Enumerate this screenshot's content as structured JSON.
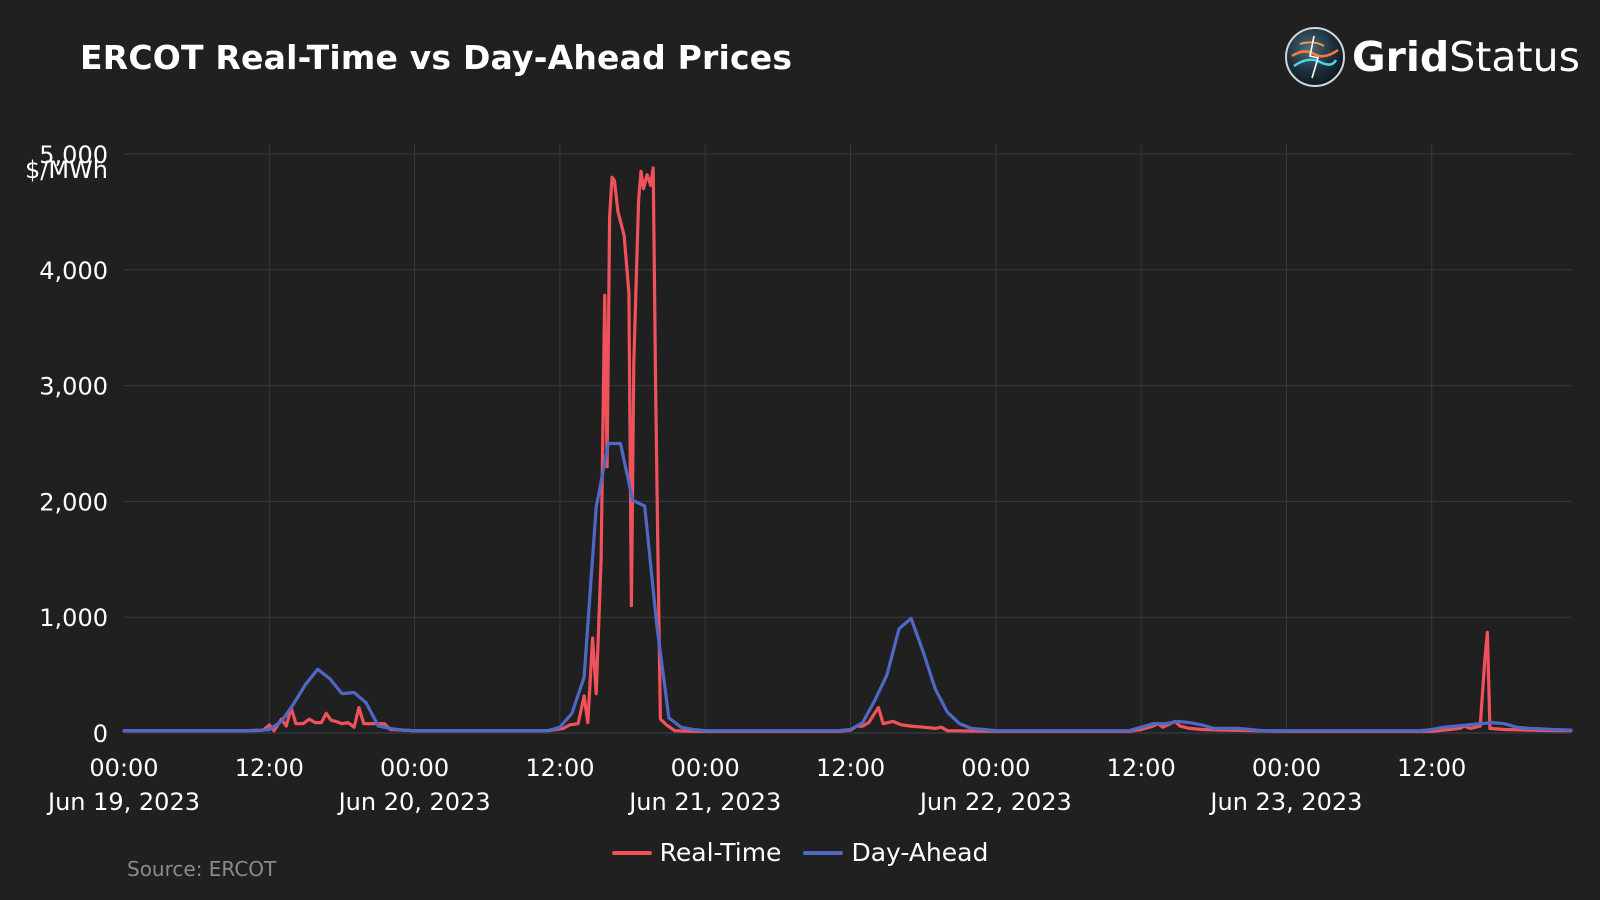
{
  "title": "ERCOT Real-Time vs Day-Ahead Prices",
  "logo": {
    "bold": "Grid",
    "light": "Status",
    "icon": "gridstatus-globe-icon"
  },
  "source": "Source: ERCOT",
  "colors": {
    "background": "#202020",
    "grid": "#2f3a46",
    "realtime": "#f0525c",
    "dayahead": "#4f68c6"
  },
  "chart_data": {
    "type": "line",
    "title": "ERCOT Real-Time vs Day-Ahead Prices",
    "ylabel": "$/MWh",
    "ylim": [
      0,
      5000
    ],
    "yticks": [
      0,
      1000,
      2000,
      3000,
      4000,
      5000
    ],
    "ytick_labels": [
      "0",
      "1,000",
      "2,000",
      "3,000",
      "4,000",
      "5,000"
    ],
    "xlim": [
      0,
      119.5
    ],
    "xticks": [
      {
        "x": 0,
        "l1": "00:00",
        "l2": "Jun 19, 2023"
      },
      {
        "x": 12,
        "l1": "12:00",
        "l2": ""
      },
      {
        "x": 24,
        "l1": "00:00",
        "l2": "Jun 20, 2023"
      },
      {
        "x": 36,
        "l1": "12:00",
        "l2": ""
      },
      {
        "x": 48,
        "l1": "00:00",
        "l2": "Jun 21, 2023"
      },
      {
        "x": 60,
        "l1": "12:00",
        "l2": ""
      },
      {
        "x": 72,
        "l1": "00:00",
        "l2": "Jun 22, 2023"
      },
      {
        "x": 84,
        "l1": "12:00",
        "l2": ""
      },
      {
        "x": 96,
        "l1": "00:00",
        "l2": "Jun 23, 2023"
      },
      {
        "x": 108,
        "l1": "12:00",
        "l2": ""
      }
    ],
    "grid": true,
    "legend_position": "bottom-center",
    "series": [
      {
        "name": "Real-Time",
        "color": "#f0525c",
        "points": [
          [
            0,
            20
          ],
          [
            10,
            20
          ],
          [
            11.5,
            25
          ],
          [
            12,
            70
          ],
          [
            12.4,
            20
          ],
          [
            13,
            120
          ],
          [
            13.4,
            60
          ],
          [
            13.8,
            220
          ],
          [
            14.2,
            80
          ],
          [
            14.8,
            80
          ],
          [
            15.3,
            120
          ],
          [
            15.8,
            90
          ],
          [
            16.3,
            90
          ],
          [
            16.7,
            170
          ],
          [
            17.1,
            110
          ],
          [
            17.5,
            100
          ],
          [
            18,
            80
          ],
          [
            18.5,
            90
          ],
          [
            19,
            50
          ],
          [
            19.4,
            220
          ],
          [
            19.8,
            80
          ],
          [
            20.5,
            80
          ],
          [
            21.5,
            80
          ],
          [
            22,
            30
          ],
          [
            24,
            20
          ],
          [
            35,
            20
          ],
          [
            36.3,
            40
          ],
          [
            36.8,
            70
          ],
          [
            37.5,
            80
          ],
          [
            38,
            320
          ],
          [
            38.3,
            90
          ],
          [
            38.7,
            820
          ],
          [
            39,
            340
          ],
          [
            39.4,
            1500
          ],
          [
            39.7,
            3780
          ],
          [
            39.9,
            2300
          ],
          [
            40.1,
            4450
          ],
          [
            40.3,
            4800
          ],
          [
            40.5,
            4770
          ],
          [
            40.8,
            4500
          ],
          [
            41.3,
            4300
          ],
          [
            41.7,
            3800
          ],
          [
            41.9,
            1100
          ],
          [
            42.1,
            3200
          ],
          [
            42.5,
            4600
          ],
          [
            42.7,
            4850
          ],
          [
            42.9,
            4700
          ],
          [
            43.2,
            4820
          ],
          [
            43.5,
            4730
          ],
          [
            43.7,
            4880
          ],
          [
            43.9,
            3000
          ],
          [
            44.1,
            1500
          ],
          [
            44.3,
            120
          ],
          [
            44.8,
            70
          ],
          [
            45.5,
            20
          ],
          [
            47,
            15
          ],
          [
            59,
            15
          ],
          [
            60,
            25
          ],
          [
            60.5,
            60
          ],
          [
            61,
            60
          ],
          [
            61.5,
            90
          ],
          [
            62.3,
            220
          ],
          [
            62.7,
            80
          ],
          [
            63.5,
            100
          ],
          [
            64.2,
            70
          ],
          [
            65,
            60
          ],
          [
            66,
            50
          ],
          [
            67,
            40
          ],
          [
            67.5,
            50
          ],
          [
            68,
            20
          ],
          [
            72,
            15
          ],
          [
            83,
            15
          ],
          [
            84,
            30
          ],
          [
            85,
            60
          ],
          [
            85.4,
            80
          ],
          [
            85.8,
            50
          ],
          [
            86.4,
            80
          ],
          [
            86.8,
            100
          ],
          [
            87.2,
            60
          ],
          [
            88,
            40
          ],
          [
            89,
            30
          ],
          [
            91,
            25
          ],
          [
            96,
            15
          ],
          [
            108,
            15
          ],
          [
            109,
            25
          ],
          [
            110.3,
            40
          ],
          [
            110.7,
            60
          ],
          [
            111.2,
            40
          ],
          [
            112,
            60
          ],
          [
            112.4,
            650
          ],
          [
            112.6,
            870
          ],
          [
            112.8,
            40
          ],
          [
            114,
            30
          ],
          [
            116,
            25
          ],
          [
            118,
            20
          ],
          [
            119.5,
            20
          ]
        ]
      },
      {
        "name": "Day-Ahead",
        "color": "#4f68c6",
        "points": [
          [
            0,
            20
          ],
          [
            10,
            20
          ],
          [
            11,
            20
          ],
          [
            12,
            30
          ],
          [
            13,
            100
          ],
          [
            14,
            250
          ],
          [
            15,
            420
          ],
          [
            16,
            550
          ],
          [
            17,
            470
          ],
          [
            18,
            340
          ],
          [
            19,
            350
          ],
          [
            20,
            260
          ],
          [
            21,
            60
          ],
          [
            22,
            40
          ],
          [
            23,
            25
          ],
          [
            24,
            20
          ],
          [
            35,
            20
          ],
          [
            36,
            50
          ],
          [
            37,
            170
          ],
          [
            38,
            480
          ],
          [
            39,
            1950
          ],
          [
            40,
            2500
          ],
          [
            41,
            2500
          ],
          [
            42,
            2010
          ],
          [
            43,
            1960
          ],
          [
            44,
            930
          ],
          [
            45,
            130
          ],
          [
            46,
            50
          ],
          [
            47,
            30
          ],
          [
            48,
            20
          ],
          [
            59,
            20
          ],
          [
            60,
            30
          ],
          [
            61,
            90
          ],
          [
            62,
            280
          ],
          [
            63,
            500
          ],
          [
            64,
            900
          ],
          [
            65,
            990
          ],
          [
            66,
            700
          ],
          [
            67,
            380
          ],
          [
            68,
            180
          ],
          [
            69,
            80
          ],
          [
            70,
            40
          ],
          [
            71,
            30
          ],
          [
            72,
            20
          ],
          [
            83,
            20
          ],
          [
            84,
            50
          ],
          [
            85,
            80
          ],
          [
            86,
            80
          ],
          [
            87,
            100
          ],
          [
            88,
            90
          ],
          [
            89,
            70
          ],
          [
            90,
            40
          ],
          [
            91,
            40
          ],
          [
            92,
            40
          ],
          [
            93,
            30
          ],
          [
            94,
            20
          ],
          [
            96,
            20
          ],
          [
            107,
            20
          ],
          [
            108,
            30
          ],
          [
            109,
            50
          ],
          [
            110,
            60
          ],
          [
            111,
            70
          ],
          [
            112,
            80
          ],
          [
            113,
            90
          ],
          [
            114,
            80
          ],
          [
            115,
            50
          ],
          [
            116,
            40
          ],
          [
            117,
            35
          ],
          [
            118,
            30
          ],
          [
            119.5,
            25
          ]
        ]
      }
    ]
  }
}
